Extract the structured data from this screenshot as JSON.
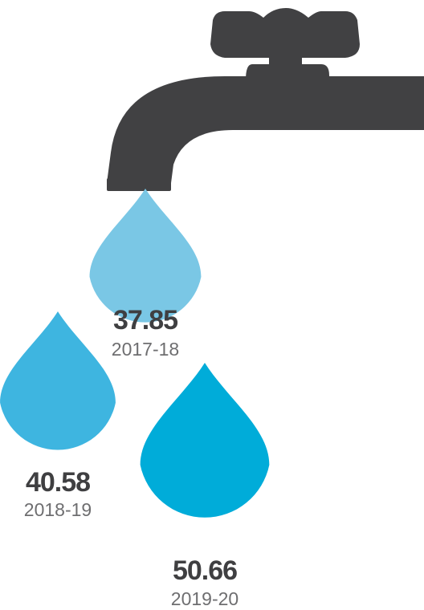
{
  "chart_data": {
    "type": "bar",
    "title": "",
    "categories": [
      "2017-18",
      "2018-19",
      "2019-20"
    ],
    "values": [
      37.85,
      40.58,
      50.66
    ],
    "value_labels": [
      "37.85",
      "40.58",
      "50.66"
    ],
    "drop_colors": [
      "#7ac7e5",
      "#3eb5e0",
      "#00acd9"
    ],
    "icon": "water-tap-icon",
    "tap_color": "#414143"
  }
}
